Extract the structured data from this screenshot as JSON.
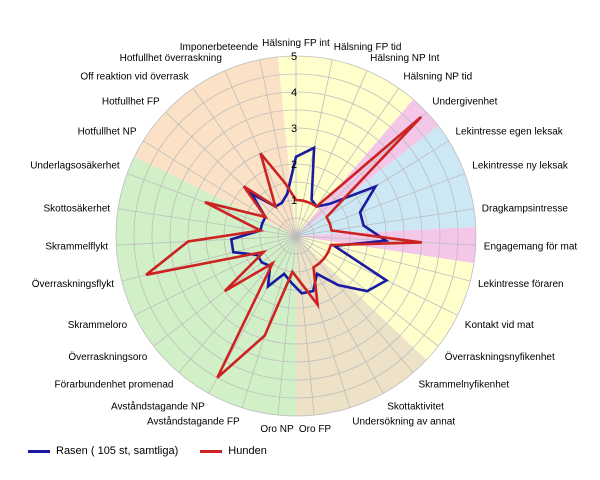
{
  "chart_data": {
    "type": "radar",
    "title": "",
    "rmax": 5,
    "ticks": [
      "1",
      "2",
      "3",
      "4",
      "5"
    ],
    "categories": [
      "Hälsning FP int",
      "Hälsning FP tid",
      "Hälsning NP Int",
      "Hälsning NP tid",
      "Undergivenhet",
      "Lekintresse egen leksak",
      "Lekintresse ny leksak",
      "Dragkampsintresse",
      "Engagemang för mat",
      "Lekintresse föraren",
      "Kontakt vid mat",
      "Överraskningsnyfikenhet",
      "Skrammelnyfikenhet",
      "Skottaktivitet",
      "Undersökning av annat",
      "Oro FP",
      "Oro NP",
      "Avståndstagande FP",
      "Avståndstagande NP",
      "Förarbundenhet promenad",
      "Överraskningsoro",
      "Skrammeloro",
      "Överraskningsflykt",
      "Skrammelflykt",
      "Skottosäkerhet",
      "Underlagsosäkerhet",
      "Hotfullhet NP",
      "Hotfullhet FP",
      "Off reaktion vid överrask",
      "Hotfullhet överraskning",
      "Imponerbeteende"
    ],
    "sectors": [
      {
        "from": 0,
        "to": 3,
        "color": "#ffffcc"
      },
      {
        "from": 4,
        "to": 4,
        "color": "#f4c6e8"
      },
      {
        "from": 5,
        "to": 7,
        "color": "#cce8f4"
      },
      {
        "from": 8,
        "to": 8,
        "color": "#f4c6e8"
      },
      {
        "from": 9,
        "to": 11,
        "color": "#ffffcc"
      },
      {
        "from": 12,
        "to": 15,
        "color": "#ede2c8"
      },
      {
        "from": 16,
        "to": 25,
        "color": "#d2f0c8"
      },
      {
        "from": 26,
        "to": 30,
        "color": "#fbe2c6"
      }
    ],
    "series": [
      {
        "name": "Rasen ( 105 st, samtliga)",
        "color": "#1a1aa0",
        "values": [
          2.2,
          2.5,
          1.1,
          1.0,
          1.3,
          2.6,
          1.9,
          1.9,
          2.5,
          1.1,
          2.8,
          2.5,
          1.8,
          1.2,
          1.6,
          1.6,
          1.3,
          1.1,
          1.6,
          1.1,
          1.2,
          1.2,
          1.8,
          1.8,
          1.0,
          1.0,
          1.0,
          1.7,
          1.0,
          1.0,
          1.2
        ]
      },
      {
        "name": "Hunden",
        "color": "#cc2222",
        "values": [
          1.0,
          1.0,
          1.0,
          1.0,
          4.8,
          1.0,
          1.0,
          1.0,
          3.5,
          1.0,
          1.0,
          1.0,
          1.0,
          1.0,
          2.0,
          1.3,
          1.0,
          2.9,
          4.5,
          1.0,
          2.5,
          1.0,
          4.3,
          3.0,
          1.0,
          2.7,
          1.0,
          2.0,
          1.0,
          2.5,
          1.5
        ]
      }
    ]
  },
  "legend": {
    "series_1": "Rasen ( 105 st, samtliga)",
    "series_2": "Hunden"
  }
}
